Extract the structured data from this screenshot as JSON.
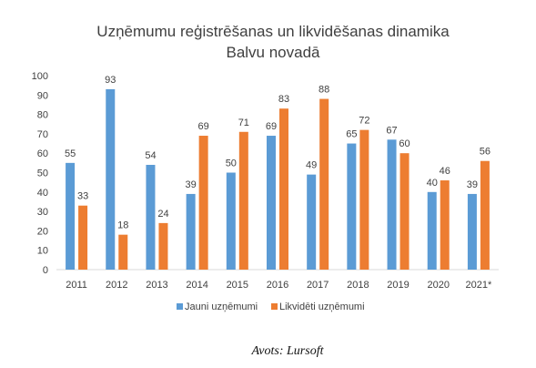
{
  "chart_data": {
    "type": "bar",
    "title_lines": [
      "Uzņēmumu reģistrēšanas un likvidēšanas dinamika",
      "Balvu novadā"
    ],
    "categories": [
      "2011",
      "2012",
      "2013",
      "2014",
      "2015",
      "2016",
      "2017",
      "2018",
      "2019",
      "2020",
      "2021*"
    ],
    "series": [
      {
        "name": "Jauni uzņēmumi",
        "color": "#5b9bd5",
        "values": [
          55,
          93,
          54,
          39,
          50,
          69,
          49,
          65,
          67,
          40,
          39
        ]
      },
      {
        "name": "Likvidēti uzņēmumi",
        "color": "#ed7d31",
        "values": [
          33,
          18,
          24,
          69,
          71,
          83,
          88,
          72,
          60,
          46,
          56
        ]
      }
    ],
    "ylim": [
      0,
      100
    ],
    "yticks": [
      0,
      10,
      20,
      30,
      40,
      50,
      60,
      70,
      80,
      90,
      100
    ],
    "grid": false,
    "legend": "bottom"
  },
  "source": "Avots: Lursoft"
}
